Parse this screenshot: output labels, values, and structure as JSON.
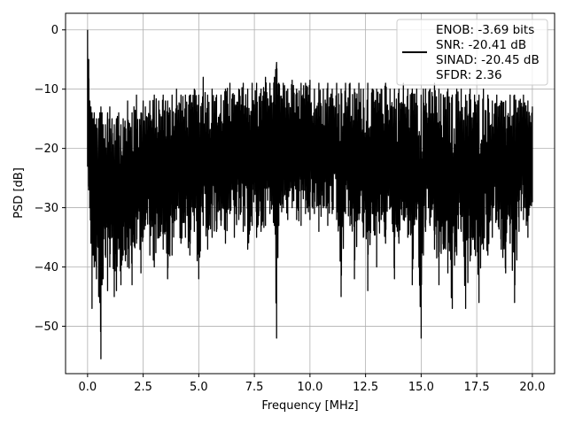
{
  "chart_data": {
    "type": "line",
    "title": "",
    "xlabel": "Frequency [MHz]",
    "ylabel": "PSD [dB]",
    "xlim": [
      -0.99,
      21.0
    ],
    "ylim": [
      -58.0,
      2.8
    ],
    "grid": true,
    "legend_position": "top-right",
    "x_ticks": [
      0.0,
      2.5,
      5.0,
      7.5,
      10.0,
      12.5,
      15.0,
      17.5,
      20.0
    ],
    "x_tick_labels": [
      "0.0",
      "2.5",
      "5.0",
      "7.5",
      "10.0",
      "12.5",
      "15.0",
      "17.5",
      "20.0"
    ],
    "y_ticks": [
      0,
      -10,
      -20,
      -30,
      -40,
      -50
    ],
    "y_tick_labels": [
      "0",
      "−10",
      "−20",
      "−30",
      "−40",
      "−50"
    ],
    "line_color": "#000000",
    "series": [
      {
        "name": "",
        "legend_lines": [
          "ENOB: -3.69 bits",
          "SNR: -20.41 dB",
          "SINAD: -20.45 dB",
          "SFDR: 2.36"
        ],
        "x": [
          0.0,
          0.05,
          0.1,
          0.15,
          0.2,
          0.25,
          0.3,
          0.35,
          0.4,
          0.5,
          0.55,
          0.6,
          0.65,
          0.7,
          0.8,
          0.9,
          1.0,
          1.1,
          1.2,
          1.3,
          1.4,
          1.5,
          1.6,
          1.8,
          2.0,
          2.2,
          2.4,
          2.5,
          2.6,
          2.8,
          3.0,
          3.2,
          3.4,
          3.5,
          3.6,
          3.8,
          4.0,
          4.2,
          4.4,
          4.6,
          4.8,
          5.0,
          5.2,
          5.4,
          5.6,
          5.8,
          6.0,
          6.2,
          6.4,
          6.6,
          6.8,
          7.0,
          7.2,
          7.4,
          7.6,
          7.8,
          8.0,
          8.2,
          8.4,
          8.5,
          8.6,
          8.8,
          9.0,
          9.2,
          9.4,
          9.6,
          9.8,
          10.0,
          10.2,
          10.4,
          10.6,
          10.8,
          11.0,
          11.2,
          11.4,
          11.6,
          11.8,
          12.0,
          12.2,
          12.4,
          12.6,
          12.8,
          13.0,
          13.2,
          13.4,
          13.6,
          13.8,
          14.0,
          14.2,
          14.4,
          14.6,
          14.8,
          15.0,
          15.1,
          15.2,
          15.4,
          15.6,
          15.8,
          16.0,
          16.2,
          16.4,
          16.6,
          16.8,
          17.0,
          17.2,
          17.4,
          17.6,
          17.8,
          18.0,
          18.2,
          18.4,
          18.6,
          18.8,
          19.0,
          19.2,
          19.4,
          19.6,
          19.8,
          20.0
        ],
        "upper": [
          0.0,
          -5.0,
          -12.0,
          -13.0,
          -14.0,
          -15.0,
          -14.0,
          -16.0,
          -15.0,
          -15.0,
          -14.0,
          -13.0,
          -14.0,
          -16.0,
          -16.0,
          -14.0,
          -13.0,
          -15.0,
          -16.0,
          -15.0,
          -14.0,
          -16.0,
          -15.0,
          -12.0,
          -14.0,
          -11.0,
          -14.0,
          -12.0,
          -13.0,
          -12.0,
          -11.0,
          -12.0,
          -11.0,
          -12.0,
          -12.0,
          -11.0,
          -10.0,
          -11.0,
          -11.0,
          -11.0,
          -10.0,
          -11.0,
          -8.0,
          -11.0,
          -10.0,
          -11.0,
          -11.0,
          -10.0,
          -9.0,
          -11.0,
          -10.0,
          -9.0,
          -10.0,
          -9.0,
          -9.0,
          -10.0,
          -8.0,
          -9.0,
          -8.0,
          -5.5,
          -9.0,
          -9.0,
          -10.0,
          -8.5,
          -10.0,
          -9.0,
          -9.0,
          -8.5,
          -10.0,
          -9.0,
          -10.0,
          -9.0,
          -10.0,
          -9.0,
          -10.0,
          -9.0,
          -9.0,
          -10.0,
          -9.0,
          -10.0,
          -9.0,
          -10.0,
          -10.0,
          -10.0,
          -9.0,
          -10.0,
          -10.0,
          -10.0,
          -9.0,
          -10.0,
          -10.0,
          -10.0,
          -11.0,
          -10.0,
          -10.0,
          -10.0,
          -9.0,
          -10.0,
          -11.0,
          -10.0,
          -11.0,
          -10.0,
          -10.0,
          -11.0,
          -10.0,
          -11.0,
          -11.0,
          -10.0,
          -11.0,
          -12.0,
          -11.0,
          -12.0,
          -12.0,
          -11.0,
          -11.0,
          -12.0,
          -11.0,
          -12.0,
          -13.0
        ],
        "lower": [
          -23.0,
          -27.0,
          -30.0,
          -36.0,
          -47.0,
          -38.0,
          -40.0,
          -39.0,
          -42.0,
          -45.0,
          -46.0,
          -55.5,
          -43.0,
          -42.0,
          -38.0,
          -44.0,
          -40.0,
          -35.0,
          -45.0,
          -44.0,
          -37.0,
          -43.0,
          -38.0,
          -40.0,
          -43.0,
          -36.0,
          -41.0,
          -35.0,
          -33.0,
          -38.0,
          -40.0,
          -35.0,
          -37.0,
          -34.0,
          -42.0,
          -38.0,
          -32.0,
          -36.0,
          -35.0,
          -38.0,
          -34.0,
          -42.0,
          -33.0,
          -37.0,
          -35.0,
          -34.0,
          -33.0,
          -36.0,
          -31.0,
          -35.0,
          -32.0,
          -34.0,
          -37.0,
          -33.0,
          -35.0,
          -34.0,
          -33.0,
          -31.0,
          -33.0,
          -52.0,
          -33.0,
          -30.0,
          -32.0,
          -30.0,
          -32.0,
          -33.0,
          -31.0,
          -32.0,
          -31.0,
          -34.0,
          -30.0,
          -33.0,
          -31.0,
          -32.0,
          -45.0,
          -31.0,
          -33.0,
          -42.0,
          -32.0,
          -35.0,
          -44.0,
          -31.0,
          -40.0,
          -32.0,
          -36.0,
          -30.0,
          -42.0,
          -36.0,
          -32.0,
          -35.0,
          -43.0,
          -32.0,
          -52.0,
          -38.0,
          -34.0,
          -33.0,
          -37.0,
          -43.0,
          -37.0,
          -41.0,
          -47.0,
          -38.0,
          -34.0,
          -47.0,
          -39.0,
          -37.0,
          -46.0,
          -37.0,
          -38.0,
          -35.0,
          -32.0,
          -37.0,
          -41.0,
          -36.0,
          -46.0,
          -34.0,
          -32.0,
          -35.0,
          -29.0
        ]
      }
    ]
  }
}
